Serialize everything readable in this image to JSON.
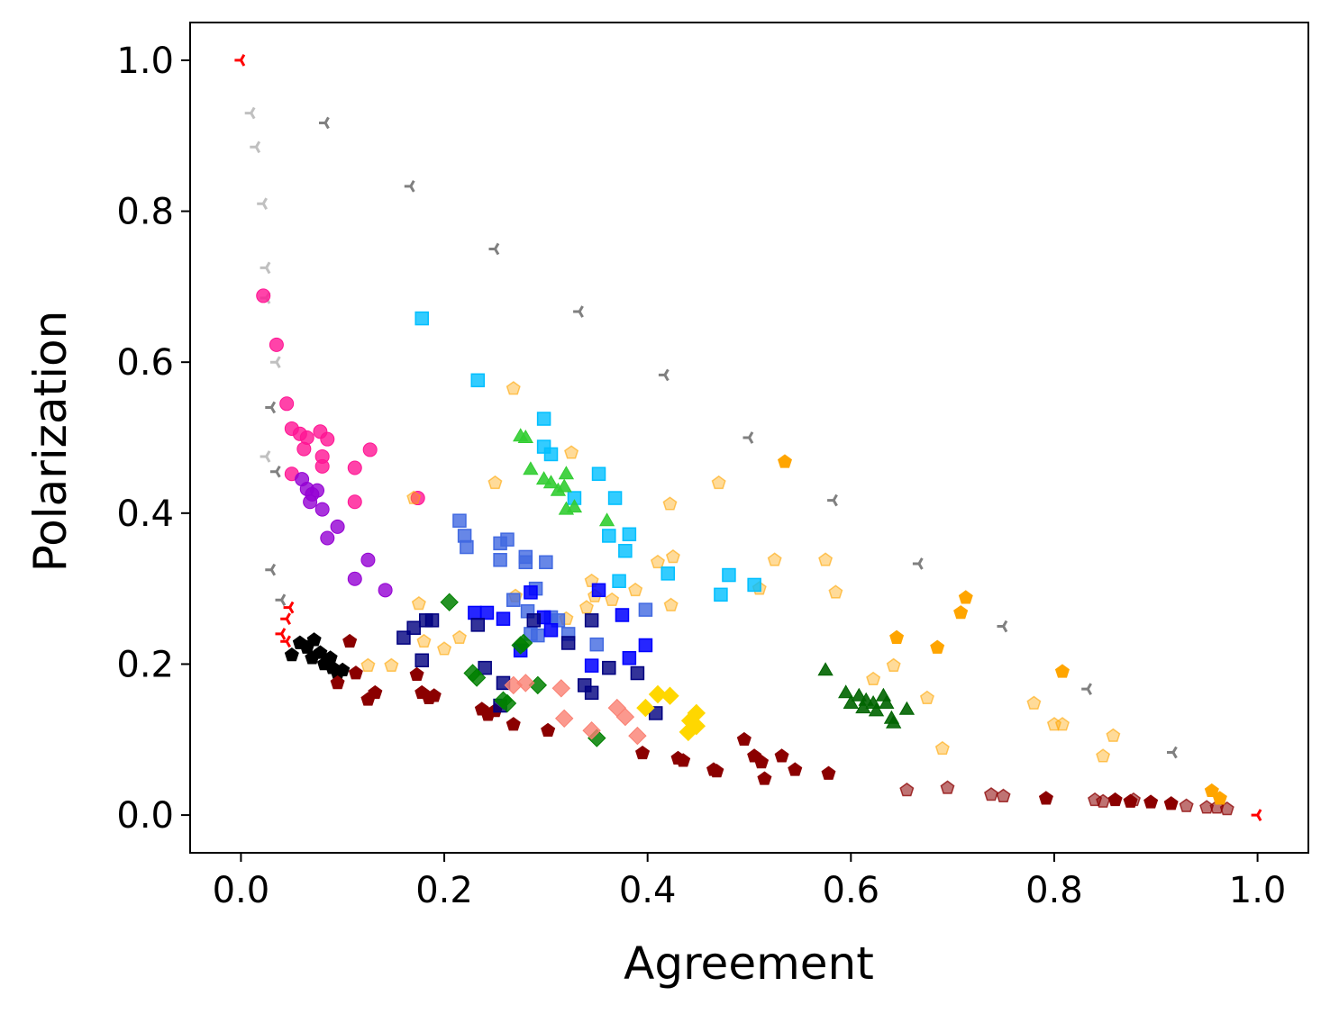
{
  "chart_data": {
    "type": "scatter",
    "title": "",
    "xlabel": "Agreement",
    "ylabel": "Polarization",
    "xlim": [
      -0.05,
      1.05
    ],
    "ylim": [
      -0.05,
      1.05
    ],
    "xticks": [
      "0.0",
      "0.2",
      "0.4",
      "0.6",
      "0.8",
      "1.0"
    ],
    "yticks": [
      "0.0",
      "0.2",
      "0.4",
      "0.6",
      "0.8",
      "1.0"
    ],
    "grid": false,
    "legend": "none",
    "series": [
      {
        "color": "#ff0000",
        "marker": "tri",
        "alpha": 1.0,
        "points": [
          [
            0.0,
            1.0
          ],
          [
            1.0,
            0.0
          ],
          [
            0.045,
            0.26
          ],
          [
            0.048,
            0.275
          ],
          [
            0.04,
            0.24
          ],
          [
            0.045,
            0.23
          ]
        ]
      },
      {
        "color": "#808080",
        "marker": "tri",
        "alpha": 1.0,
        "points": [
          [
            0.083,
            0.917
          ],
          [
            0.167,
            0.833
          ],
          [
            0.25,
            0.75
          ],
          [
            0.333,
            0.667
          ],
          [
            0.417,
            0.583
          ],
          [
            0.5,
            0.5
          ],
          [
            0.583,
            0.417
          ],
          [
            0.667,
            0.333
          ],
          [
            0.75,
            0.25
          ],
          [
            0.833,
            0.167
          ],
          [
            0.917,
            0.083
          ],
          [
            0.03,
            0.325
          ],
          [
            0.04,
            0.285
          ],
          [
            0.035,
            0.455
          ],
          [
            0.03,
            0.54
          ]
        ]
      },
      {
        "color": "#c0c0c0",
        "marker": "tri",
        "alpha": 1.0,
        "points": [
          [
            0.01,
            0.93
          ],
          [
            0.015,
            0.885
          ],
          [
            0.022,
            0.81
          ],
          [
            0.025,
            0.725
          ],
          [
            0.025,
            0.685
          ],
          [
            0.035,
            0.6
          ],
          [
            0.025,
            0.475
          ]
        ]
      },
      {
        "color": "#ff1493",
        "marker": "circle",
        "alpha": 0.8,
        "points": [
          [
            0.022,
            0.688
          ],
          [
            0.035,
            0.623
          ],
          [
            0.045,
            0.545
          ],
          [
            0.05,
            0.512
          ],
          [
            0.058,
            0.505
          ],
          [
            0.062,
            0.485
          ],
          [
            0.065,
            0.5
          ],
          [
            0.078,
            0.508
          ],
          [
            0.085,
            0.498
          ],
          [
            0.08,
            0.475
          ],
          [
            0.08,
            0.462
          ],
          [
            0.112,
            0.46
          ],
          [
            0.127,
            0.484
          ],
          [
            0.112,
            0.415
          ],
          [
            0.174,
            0.42
          ],
          [
            0.05,
            0.452
          ]
        ]
      },
      {
        "color": "#9400d3",
        "marker": "circle",
        "alpha": 0.8,
        "points": [
          [
            0.06,
            0.445
          ],
          [
            0.065,
            0.432
          ],
          [
            0.07,
            0.425
          ],
          [
            0.075,
            0.43
          ],
          [
            0.068,
            0.415
          ],
          [
            0.08,
            0.405
          ],
          [
            0.085,
            0.367
          ],
          [
            0.095,
            0.382
          ],
          [
            0.125,
            0.338
          ],
          [
            0.112,
            0.313
          ],
          [
            0.142,
            0.298
          ]
        ]
      },
      {
        "color": "#000000",
        "marker": "pentagon",
        "alpha": 1.0,
        "points": [
          [
            0.05,
            0.212
          ],
          [
            0.058,
            0.228
          ],
          [
            0.065,
            0.222
          ],
          [
            0.072,
            0.232
          ],
          [
            0.07,
            0.208
          ],
          [
            0.078,
            0.215
          ],
          [
            0.082,
            0.2
          ],
          [
            0.088,
            0.208
          ],
          [
            0.09,
            0.195
          ],
          [
            0.095,
            0.188
          ],
          [
            0.1,
            0.192
          ]
        ]
      },
      {
        "color": "#8b0000",
        "marker": "pentagon",
        "alpha": 1.0,
        "points": [
          [
            0.107,
            0.23
          ],
          [
            0.113,
            0.188
          ],
          [
            0.095,
            0.175
          ],
          [
            0.125,
            0.153
          ],
          [
            0.132,
            0.162
          ],
          [
            0.173,
            0.186
          ],
          [
            0.178,
            0.162
          ],
          [
            0.185,
            0.155
          ],
          [
            0.19,
            0.158
          ],
          [
            0.237,
            0.14
          ],
          [
            0.243,
            0.133
          ],
          [
            0.25,
            0.138
          ],
          [
            0.268,
            0.12
          ],
          [
            0.302,
            0.112
          ],
          [
            0.395,
            0.082
          ],
          [
            0.43,
            0.075
          ],
          [
            0.435,
            0.072
          ],
          [
            0.465,
            0.06
          ],
          [
            0.468,
            0.058
          ],
          [
            0.495,
            0.1
          ],
          [
            0.505,
            0.078
          ],
          [
            0.512,
            0.07
          ],
          [
            0.515,
            0.048
          ],
          [
            0.532,
            0.078
          ],
          [
            0.545,
            0.06
          ],
          [
            0.578,
            0.055
          ],
          [
            0.792,
            0.022
          ],
          [
            0.86,
            0.02
          ],
          [
            0.875,
            0.018
          ],
          [
            0.895,
            0.017
          ],
          [
            0.915,
            0.015
          ]
        ]
      },
      {
        "color": "#8b0000",
        "marker": "pentagon",
        "alpha": 0.55,
        "points": [
          [
            0.655,
            0.033
          ],
          [
            0.695,
            0.036
          ],
          [
            0.738,
            0.027
          ],
          [
            0.75,
            0.025
          ],
          [
            0.84,
            0.02
          ],
          [
            0.848,
            0.018
          ],
          [
            0.878,
            0.02
          ],
          [
            0.93,
            0.012
          ],
          [
            0.95,
            0.01
          ],
          [
            0.96,
            0.01
          ],
          [
            0.97,
            0.008
          ]
        ]
      },
      {
        "color": "#ffa500",
        "marker": "pentagon",
        "alpha": 0.4,
        "points": [
          [
            0.268,
            0.565
          ],
          [
            0.25,
            0.44
          ],
          [
            0.325,
            0.48
          ],
          [
            0.17,
            0.42
          ],
          [
            0.175,
            0.28
          ],
          [
            0.18,
            0.23
          ],
          [
            0.2,
            0.22
          ],
          [
            0.215,
            0.235
          ],
          [
            0.125,
            0.198
          ],
          [
            0.148,
            0.198
          ],
          [
            0.345,
            0.31
          ],
          [
            0.348,
            0.29
          ],
          [
            0.34,
            0.275
          ],
          [
            0.32,
            0.26
          ],
          [
            0.27,
            0.29
          ],
          [
            0.365,
            0.285
          ],
          [
            0.388,
            0.298
          ],
          [
            0.41,
            0.335
          ],
          [
            0.422,
            0.412
          ],
          [
            0.423,
            0.278
          ],
          [
            0.425,
            0.342
          ],
          [
            0.47,
            0.44
          ],
          [
            0.51,
            0.3
          ],
          [
            0.525,
            0.338
          ],
          [
            0.575,
            0.338
          ],
          [
            0.585,
            0.295
          ],
          [
            0.622,
            0.18
          ],
          [
            0.642,
            0.198
          ],
          [
            0.675,
            0.155
          ],
          [
            0.69,
            0.088
          ],
          [
            0.78,
            0.148
          ],
          [
            0.8,
            0.12
          ],
          [
            0.808,
            0.12
          ],
          [
            0.848,
            0.078
          ],
          [
            0.858,
            0.105
          ]
        ]
      },
      {
        "color": "#ffa500",
        "marker": "pentagon",
        "alpha": 1.0,
        "points": [
          [
            0.535,
            0.468
          ],
          [
            0.645,
            0.235
          ],
          [
            0.685,
            0.222
          ],
          [
            0.708,
            0.268
          ],
          [
            0.713,
            0.288
          ],
          [
            0.808,
            0.19
          ],
          [
            0.955,
            0.032
          ],
          [
            0.963,
            0.022
          ]
        ]
      },
      {
        "color": "#00bfff",
        "marker": "square",
        "alpha": 0.8,
        "points": [
          [
            0.178,
            0.658
          ],
          [
            0.233,
            0.576
          ],
          [
            0.298,
            0.525
          ],
          [
            0.298,
            0.488
          ],
          [
            0.305,
            0.478
          ],
          [
            0.352,
            0.452
          ],
          [
            0.368,
            0.42
          ],
          [
            0.328,
            0.42
          ],
          [
            0.362,
            0.37
          ],
          [
            0.382,
            0.372
          ],
          [
            0.378,
            0.35
          ],
          [
            0.372,
            0.31
          ],
          [
            0.42,
            0.32
          ],
          [
            0.48,
            0.318
          ],
          [
            0.505,
            0.305
          ],
          [
            0.472,
            0.292
          ]
        ]
      },
      {
        "color": "#32cd32",
        "marker": "triangle",
        "alpha": 0.9,
        "points": [
          [
            0.275,
            0.502
          ],
          [
            0.28,
            0.5
          ],
          [
            0.285,
            0.458
          ],
          [
            0.298,
            0.445
          ],
          [
            0.305,
            0.44
          ],
          [
            0.312,
            0.43
          ],
          [
            0.32,
            0.452
          ],
          [
            0.318,
            0.435
          ],
          [
            0.32,
            0.405
          ],
          [
            0.328,
            0.408
          ],
          [
            0.36,
            0.39
          ]
        ]
      },
      {
        "color": "#4169e1",
        "marker": "square",
        "alpha": 0.8,
        "points": [
          [
            0.215,
            0.39
          ],
          [
            0.22,
            0.37
          ],
          [
            0.222,
            0.355
          ],
          [
            0.255,
            0.36
          ],
          [
            0.262,
            0.365
          ],
          [
            0.255,
            0.338
          ],
          [
            0.28,
            0.342
          ],
          [
            0.28,
            0.335
          ],
          [
            0.3,
            0.335
          ],
          [
            0.29,
            0.3
          ],
          [
            0.268,
            0.285
          ],
          [
            0.282,
            0.27
          ],
          [
            0.305,
            0.262
          ],
          [
            0.312,
            0.258
          ],
          [
            0.285,
            0.24
          ],
          [
            0.292,
            0.238
          ],
          [
            0.322,
            0.24
          ],
          [
            0.35,
            0.226
          ],
          [
            0.398,
            0.272
          ]
        ]
      },
      {
        "color": "#0000ff",
        "marker": "square",
        "alpha": 0.85,
        "points": [
          [
            0.23,
            0.268
          ],
          [
            0.242,
            0.268
          ],
          [
            0.258,
            0.26
          ],
          [
            0.285,
            0.295
          ],
          [
            0.298,
            0.262
          ],
          [
            0.305,
            0.245
          ],
          [
            0.345,
            0.198
          ],
          [
            0.352,
            0.298
          ],
          [
            0.375,
            0.265
          ],
          [
            0.398,
            0.225
          ],
          [
            0.275,
            0.218
          ],
          [
            0.382,
            0.208
          ]
        ]
      },
      {
        "color": "#000080",
        "marker": "square",
        "alpha": 0.8,
        "points": [
          [
            0.16,
            0.235
          ],
          [
            0.17,
            0.248
          ],
          [
            0.182,
            0.258
          ],
          [
            0.188,
            0.258
          ],
          [
            0.178,
            0.205
          ],
          [
            0.233,
            0.252
          ],
          [
            0.24,
            0.195
          ],
          [
            0.258,
            0.175
          ],
          [
            0.288,
            0.258
          ],
          [
            0.322,
            0.228
          ],
          [
            0.338,
            0.172
          ],
          [
            0.345,
            0.258
          ],
          [
            0.345,
            0.162
          ],
          [
            0.362,
            0.195
          ],
          [
            0.39,
            0.188
          ],
          [
            0.408,
            0.135
          ],
          [
            0.255,
            0.145
          ]
        ]
      },
      {
        "color": "#008000",
        "marker": "diamond",
        "alpha": 0.85,
        "points": [
          [
            0.205,
            0.282
          ],
          [
            0.228,
            0.188
          ],
          [
            0.232,
            0.182
          ],
          [
            0.258,
            0.152
          ],
          [
            0.262,
            0.148
          ],
          [
            0.275,
            0.225
          ],
          [
            0.278,
            0.228
          ],
          [
            0.292,
            0.172
          ],
          [
            0.35,
            0.102
          ]
        ]
      },
      {
        "color": "#fa8072",
        "marker": "diamond",
        "alpha": 0.8,
        "points": [
          [
            0.268,
            0.172
          ],
          [
            0.28,
            0.175
          ],
          [
            0.315,
            0.168
          ],
          [
            0.318,
            0.128
          ],
          [
            0.345,
            0.112
          ],
          [
            0.37,
            0.142
          ],
          [
            0.378,
            0.13
          ],
          [
            0.39,
            0.105
          ]
        ]
      },
      {
        "color": "#ffd700",
        "marker": "diamond",
        "alpha": 1.0,
        "points": [
          [
            0.398,
            0.142
          ],
          [
            0.41,
            0.16
          ],
          [
            0.422,
            0.158
          ],
          [
            0.442,
            0.125
          ],
          [
            0.448,
            0.135
          ],
          [
            0.44,
            0.11
          ],
          [
            0.448,
            0.118
          ]
        ]
      },
      {
        "color": "#006400",
        "marker": "triangle",
        "alpha": 0.9,
        "points": [
          [
            0.575,
            0.192
          ],
          [
            0.595,
            0.162
          ],
          [
            0.6,
            0.148
          ],
          [
            0.608,
            0.158
          ],
          [
            0.612,
            0.142
          ],
          [
            0.615,
            0.152
          ],
          [
            0.622,
            0.148
          ],
          [
            0.625,
            0.138
          ],
          [
            0.632,
            0.158
          ],
          [
            0.635,
            0.148
          ],
          [
            0.64,
            0.128
          ],
          [
            0.642,
            0.122
          ],
          [
            0.655,
            0.14
          ]
        ]
      }
    ]
  }
}
